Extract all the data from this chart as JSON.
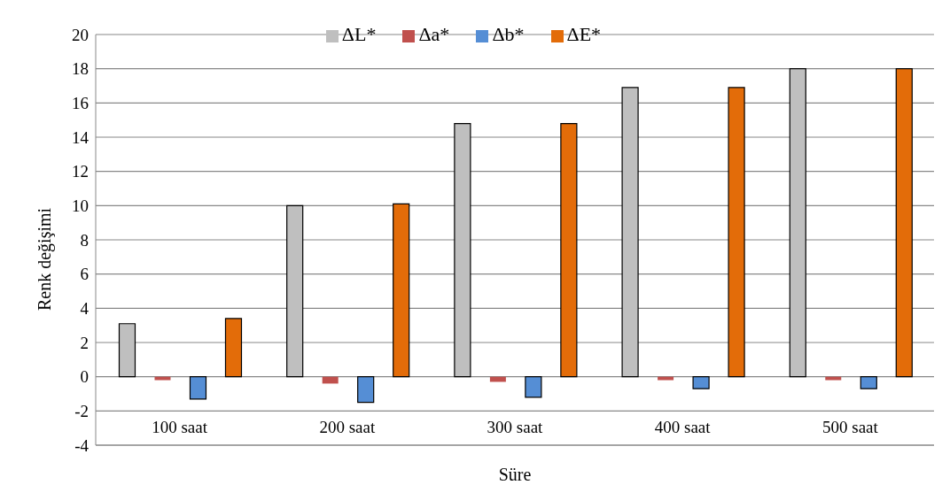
{
  "chart_data": {
    "type": "bar",
    "xlabel": "Süre",
    "ylabel": "Renk değişimi",
    "categories": [
      "100 saat",
      "200 saat",
      "300 saat",
      "400 saat",
      "500 saat"
    ],
    "series": [
      {
        "name": "ΔL*",
        "color": "#bfbfbf",
        "values": [
          3.1,
          10.0,
          14.8,
          16.9,
          18.0
        ]
      },
      {
        "name": "Δa*",
        "color": "#c0504d",
        "values": [
          -0.2,
          -0.4,
          -0.3,
          -0.2,
          -0.2
        ]
      },
      {
        "name": "Δb*",
        "color": "#558ed5",
        "values": [
          -1.3,
          -1.5,
          -1.2,
          -0.7,
          -0.7
        ]
      },
      {
        "name": "ΔE*",
        "color": "#e36c09",
        "values": [
          3.4,
          10.1,
          14.8,
          16.9,
          18.0
        ]
      }
    ],
    "ylim": [
      -4,
      20
    ],
    "yticks": [
      -4,
      -2,
      0,
      2,
      4,
      6,
      8,
      10,
      12,
      14,
      16,
      18,
      20
    ],
    "grid": "y",
    "legend": "top"
  }
}
